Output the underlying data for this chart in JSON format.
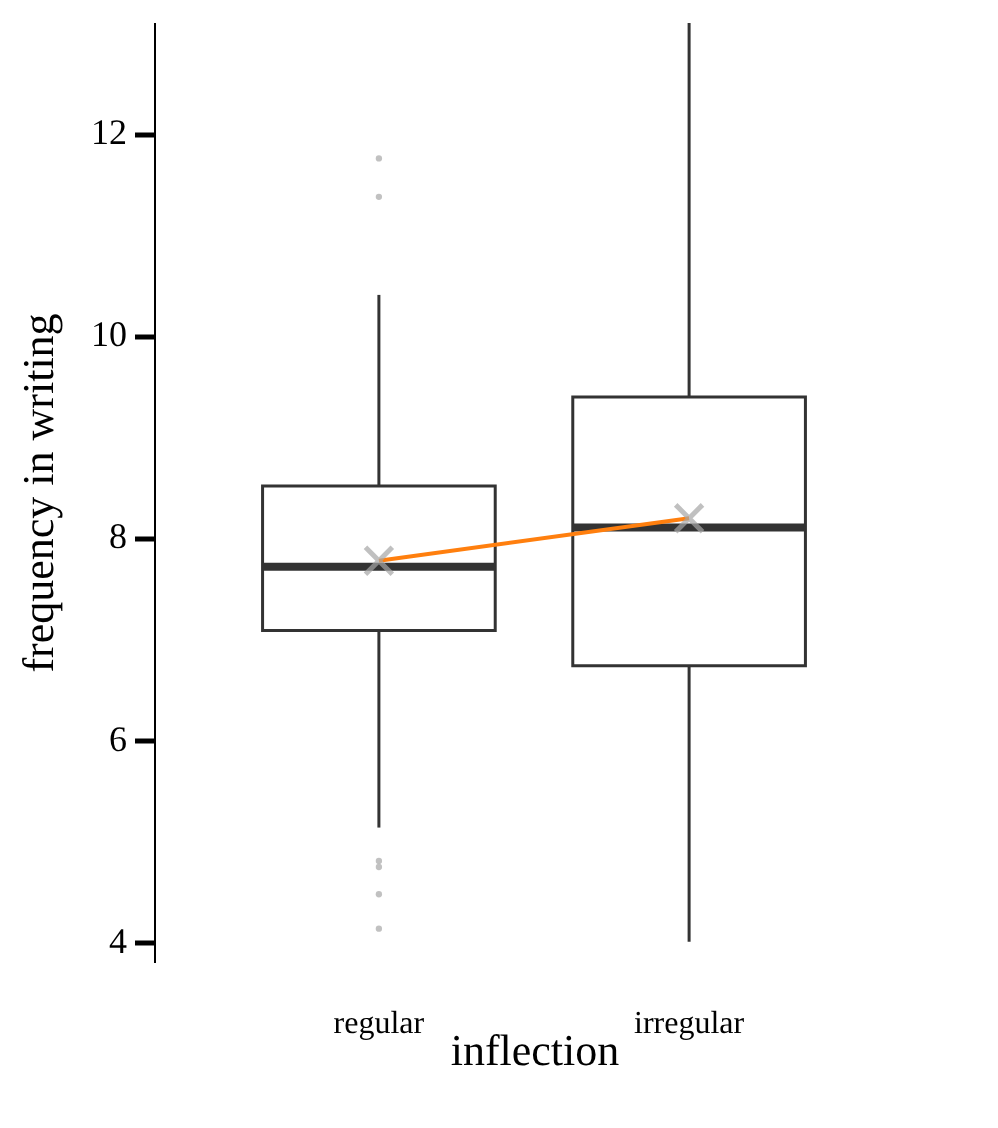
{
  "chart_data": {
    "type": "box",
    "xlabel": "inflection",
    "ylabel": "frequency in writing",
    "categories": [
      "regular",
      "irregular"
    ],
    "boxes": [
      {
        "low": 5.13,
        "q1": 7.08,
        "median": 7.71,
        "q3": 8.51,
        "high": 10.4,
        "outliers": [
          4.13,
          4.47,
          4.74,
          4.8,
          11.37,
          11.75
        ]
      },
      {
        "low": 4.0,
        "q1": 6.73,
        "median": 8.1,
        "q3": 9.39,
        "high": 13.09
      }
    ],
    "series": [
      {
        "type": "line",
        "color": "#ff7f0e",
        "x": [
          "regular",
          "irregular"
        ],
        "values": [
          7.77,
          8.19
        ],
        "marker": "none"
      },
      {
        "type": "scatter",
        "color": "#a6a6a6",
        "x": [
          "regular",
          "irregular"
        ],
        "values": [
          7.77,
          8.19
        ],
        "marker": "cross"
      }
    ],
    "ylim": [
      3.8,
      13.1
    ],
    "yticks": [
      4,
      6,
      8,
      10,
      12
    ]
  }
}
